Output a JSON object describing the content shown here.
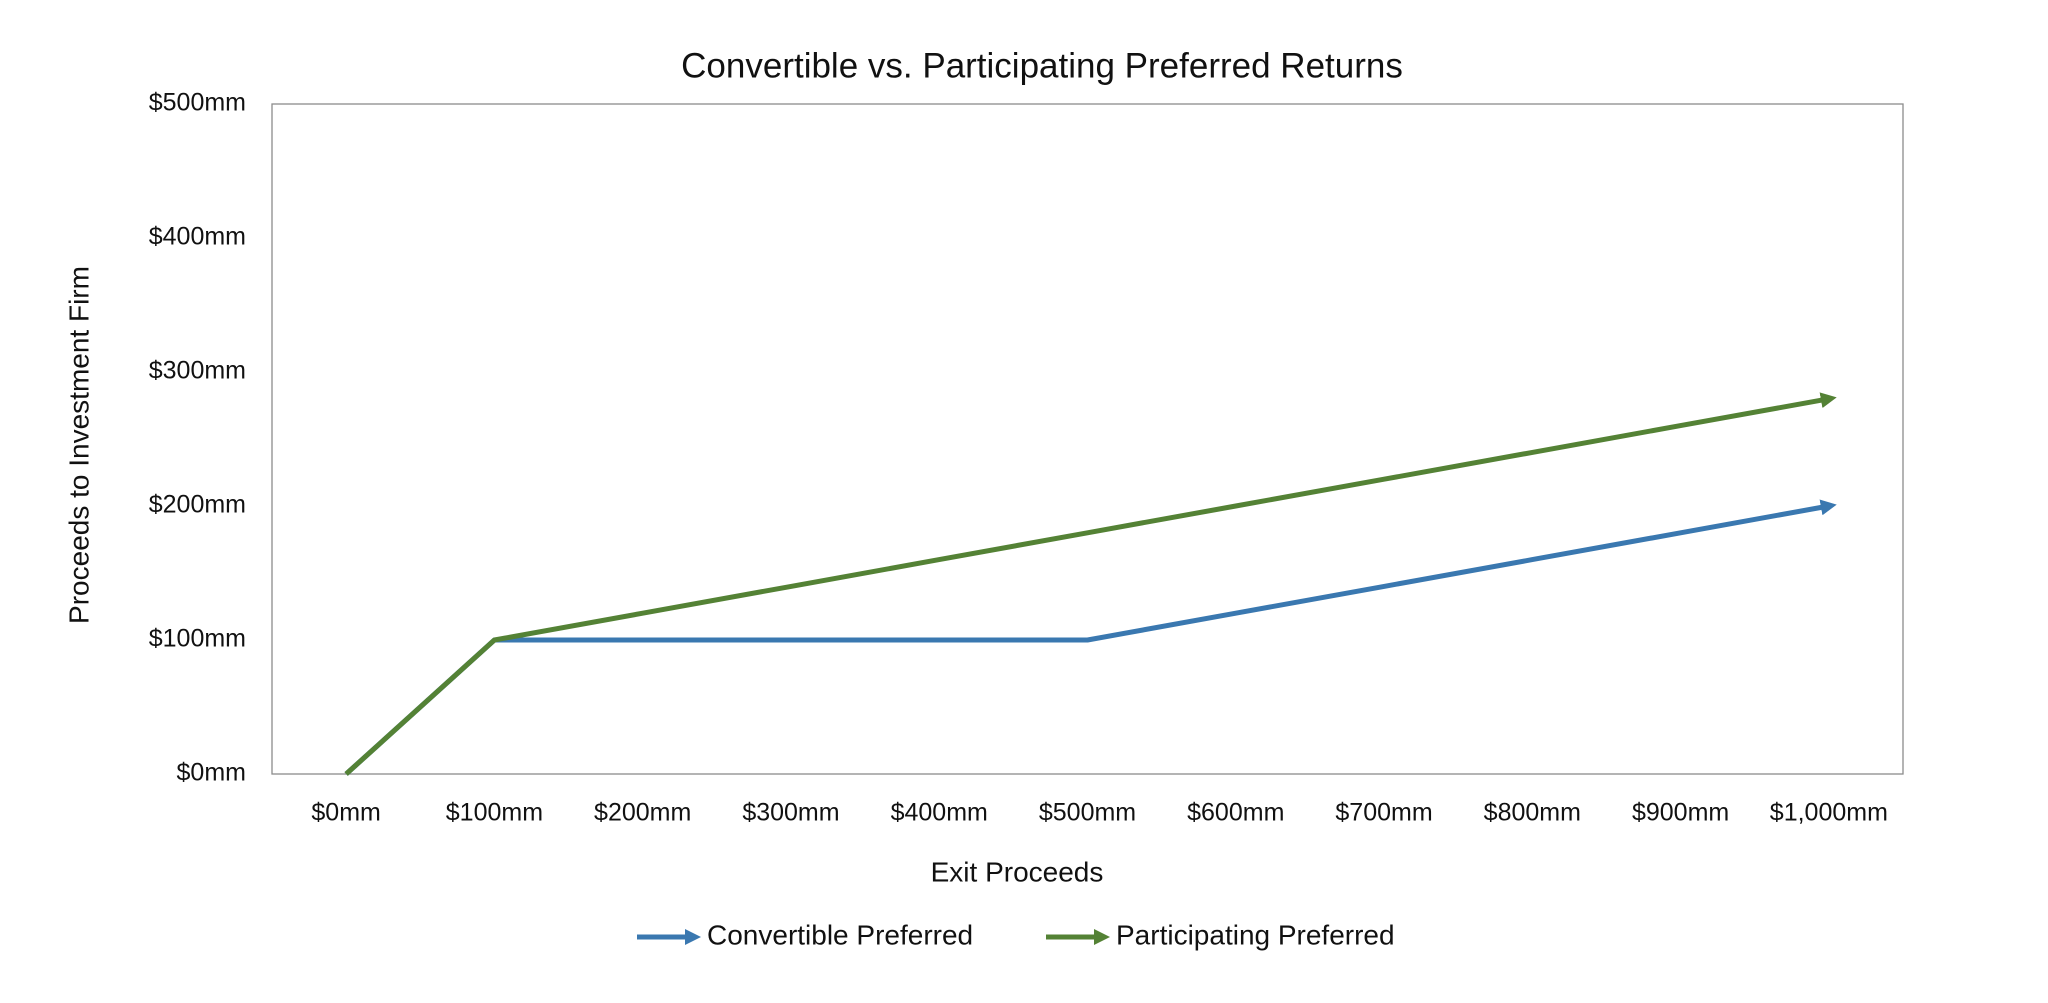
{
  "chart_data": {
    "type": "line",
    "title": "Convertible vs. Participating Preferred Returns",
    "x_label": "Exit Proceeds",
    "y_label": "Proceeds to Investment Firm",
    "categories": [
      "$0mm",
      "$100mm",
      "$200mm",
      "$300mm",
      "$400mm",
      "$500mm",
      "$600mm",
      "$700mm",
      "$800mm",
      "$900mm",
      "$1,000mm"
    ],
    "series": [
      {
        "name": "Convertible Preferred",
        "color": "#3a78b0",
        "values": [
          0,
          100,
          100,
          100,
          100,
          100,
          120,
          140,
          160,
          180,
          200
        ]
      },
      {
        "name": "Participating Preferred",
        "color": "#548235",
        "values": [
          0,
          100,
          120,
          140,
          160,
          180,
          200,
          220,
          240,
          260,
          280
        ]
      }
    ],
    "ylim": [
      0,
      500
    ],
    "yticks": [
      {
        "value": 0,
        "label": "$0mm"
      },
      {
        "value": 100,
        "label": "$100mm"
      },
      {
        "value": 200,
        "label": "$200mm"
      },
      {
        "value": 300,
        "label": "$300mm"
      },
      {
        "value": 400,
        "label": "$400mm"
      },
      {
        "value": 500,
        "label": "$500mm"
      }
    ],
    "grid": false,
    "legend": "bottom"
  }
}
